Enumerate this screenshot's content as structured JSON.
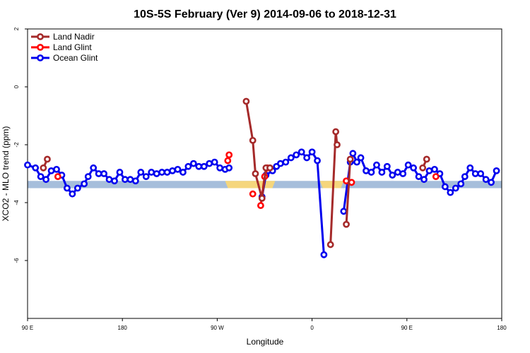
{
  "chart_data": {
    "type": "line",
    "title": "10S-5S February (Ver 9)   2014-09-06 to 2018-12-31",
    "xlabel": "Longitude",
    "ylabel": "XCO2 - MLO trend (ppm)",
    "xlim": [
      0,
      360
    ],
    "ylim": [
      -8,
      2
    ],
    "x_ticks": [
      {
        "value": 0,
        "label": "90 E"
      },
      {
        "value": 72,
        "label": "180"
      },
      {
        "value": 144,
        "label": "90 W"
      },
      {
        "value": 216,
        "label": "0"
      },
      {
        "value": 288,
        "label": "90 E"
      },
      {
        "value": 360,
        "label": "180"
      }
    ],
    "y_ticks": [
      {
        "value": 2,
        "label": "2"
      },
      {
        "value": 0,
        "label": "0"
      },
      {
        "value": -2,
        "label": "-2"
      },
      {
        "value": -4,
        "label": "-4"
      },
      {
        "value": -6,
        "label": "-6"
      }
    ],
    "legend_position": "top-left",
    "colors": {
      "land_nadir": "#a52a2a",
      "land_glint": "#ff0000",
      "ocean_glint": "#0000ee",
      "band_ocean": "#a6bedb",
      "band_land": "#f5d67c"
    },
    "band": {
      "y_range": [
        -3.5,
        -3.25
      ],
      "land_segments": [
        [
          150,
          188
        ],
        [
          222,
          240
        ]
      ]
    },
    "series": [
      {
        "name": "Land Nadir",
        "color": "#a52a2a",
        "segments": [
          [
            {
              "x": 12,
              "y": -2.8
            },
            {
              "x": 15,
              "y": -2.5
            }
          ],
          [
            {
              "x": 166,
              "y": -0.5
            },
            {
              "x": 171,
              "y": -1.85
            },
            {
              "x": 173,
              "y": -3.0
            },
            {
              "x": 178,
              "y": -3.85
            },
            {
              "x": 181,
              "y": -2.8
            },
            {
              "x": 184,
              "y": -2.8
            }
          ],
          [
            {
              "x": 230,
              "y": -5.45
            },
            {
              "x": 234,
              "y": -1.55
            },
            {
              "x": 235,
              "y": -2.0
            }
          ],
          [
            {
              "x": 242,
              "y": -4.75
            },
            {
              "x": 245,
              "y": -2.5
            }
          ],
          [
            {
              "x": 300,
              "y": -2.8
            },
            {
              "x": 303,
              "y": -2.5
            }
          ]
        ]
      },
      {
        "name": "Land Glint",
        "color": "#ff0000",
        "segments": [
          [
            {
              "x": 23,
              "y": -3.1
            }
          ],
          [
            {
              "x": 152,
              "y": -2.55
            },
            {
              "x": 153,
              "y": -2.35
            }
          ],
          [
            {
              "x": 171,
              "y": -3.7
            }
          ],
          [
            {
              "x": 177,
              "y": -4.1
            },
            {
              "x": 180,
              "y": -3.1
            },
            {
              "x": 182,
              "y": -2.8
            }
          ],
          [
            {
              "x": 242,
              "y": -3.25
            },
            {
              "x": 246,
              "y": -3.3
            }
          ],
          [
            {
              "x": 310,
              "y": -3.1
            }
          ]
        ]
      },
      {
        "name": "Ocean Glint",
        "color": "#0000ee",
        "segments": [
          [
            {
              "x": 0,
              "y": -2.7
            },
            {
              "x": 6,
              "y": -2.8
            },
            {
              "x": 10,
              "y": -3.1
            },
            {
              "x": 14,
              "y": -3.2
            },
            {
              "x": 18,
              "y": -2.9
            },
            {
              "x": 22,
              "y": -2.85
            },
            {
              "x": 26,
              "y": -3.05
            },
            {
              "x": 30,
              "y": -3.5
            },
            {
              "x": 34,
              "y": -3.7
            },
            {
              "x": 38,
              "y": -3.5
            },
            {
              "x": 43,
              "y": -3.35
            },
            {
              "x": 46,
              "y": -3.1
            },
            {
              "x": 50,
              "y": -2.8
            },
            {
              "x": 54,
              "y": -3.0
            },
            {
              "x": 58,
              "y": -3.0
            },
            {
              "x": 62,
              "y": -3.2
            },
            {
              "x": 66,
              "y": -3.25
            },
            {
              "x": 70,
              "y": -2.95
            },
            {
              "x": 74,
              "y": -3.2
            },
            {
              "x": 78,
              "y": -3.2
            },
            {
              "x": 82,
              "y": -3.25
            },
            {
              "x": 86,
              "y": -2.95
            },
            {
              "x": 90,
              "y": -3.1
            },
            {
              "x": 94,
              "y": -2.95
            },
            {
              "x": 98,
              "y": -3.0
            },
            {
              "x": 102,
              "y": -2.95
            },
            {
              "x": 106,
              "y": -2.95
            },
            {
              "x": 110,
              "y": -2.9
            },
            {
              "x": 114,
              "y": -2.85
            },
            {
              "x": 118,
              "y": -2.95
            },
            {
              "x": 122,
              "y": -2.75
            },
            {
              "x": 126,
              "y": -2.65
            },
            {
              "x": 130,
              "y": -2.75
            },
            {
              "x": 134,
              "y": -2.75
            },
            {
              "x": 138,
              "y": -2.65
            },
            {
              "x": 142,
              "y": -2.6
            },
            {
              "x": 146,
              "y": -2.8
            },
            {
              "x": 150,
              "y": -2.85
            },
            {
              "x": 153,
              "y": -2.8
            }
          ],
          [
            {
              "x": 178,
              "y": -3.8
            },
            {
              "x": 181,
              "y": -3.05
            },
            {
              "x": 186,
              "y": -2.9
            },
            {
              "x": 189,
              "y": -2.75
            },
            {
              "x": 192,
              "y": -2.65
            },
            {
              "x": 196,
              "y": -2.6
            },
            {
              "x": 200,
              "y": -2.45
            },
            {
              "x": 204,
              "y": -2.35
            },
            {
              "x": 208,
              "y": -2.25
            },
            {
              "x": 212,
              "y": -2.45
            },
            {
              "x": 216,
              "y": -2.25
            },
            {
              "x": 220,
              "y": -2.55
            },
            {
              "x": 225,
              "y": -5.8
            }
          ],
          [
            {
              "x": 240,
              "y": -4.3
            },
            {
              "x": 245,
              "y": -2.6
            },
            {
              "x": 247,
              "y": -2.3
            },
            {
              "x": 250,
              "y": -2.6
            },
            {
              "x": 253,
              "y": -2.45
            },
            {
              "x": 257,
              "y": -2.9
            },
            {
              "x": 261,
              "y": -2.95
            },
            {
              "x": 265,
              "y": -2.7
            },
            {
              "x": 269,
              "y": -2.95
            },
            {
              "x": 273,
              "y": -2.75
            },
            {
              "x": 277,
              "y": -3.05
            },
            {
              "x": 281,
              "y": -2.95
            },
            {
              "x": 285,
              "y": -3.0
            },
            {
              "x": 289,
              "y": -2.7
            },
            {
              "x": 293,
              "y": -2.8
            },
            {
              "x": 297,
              "y": -3.1
            },
            {
              "x": 301,
              "y": -3.2
            },
            {
              "x": 305,
              "y": -2.9
            },
            {
              "x": 309,
              "y": -2.85
            },
            {
              "x": 313,
              "y": -3.0
            },
            {
              "x": 317,
              "y": -3.45
            },
            {
              "x": 321,
              "y": -3.65
            },
            {
              "x": 325,
              "y": -3.5
            },
            {
              "x": 329,
              "y": -3.35
            },
            {
              "x": 332,
              "y": -3.1
            },
            {
              "x": 336,
              "y": -2.8
            },
            {
              "x": 340,
              "y": -3.0
            },
            {
              "x": 344,
              "y": -3.0
            },
            {
              "x": 348,
              "y": -3.2
            },
            {
              "x": 352,
              "y": -3.3
            },
            {
              "x": 356,
              "y": -2.9
            }
          ]
        ]
      }
    ]
  }
}
